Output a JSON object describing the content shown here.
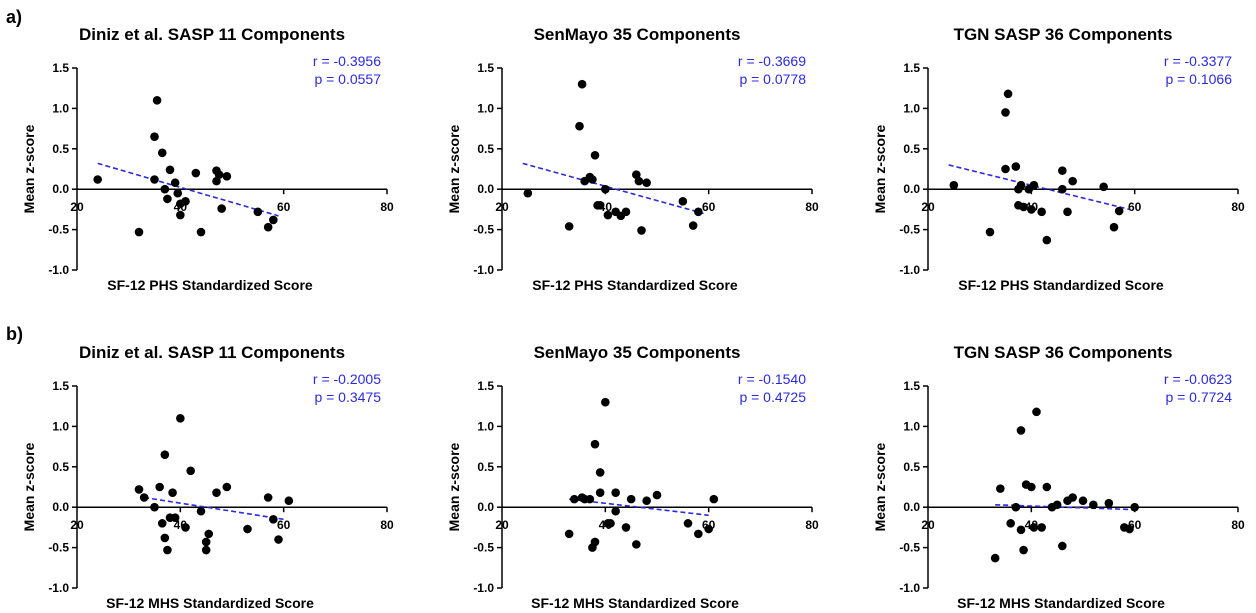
{
  "row_labels": [
    "a)",
    "b)"
  ],
  "colors": {
    "points": "#000000",
    "trend": "#2b2bdc",
    "stats": "#2b2bdc",
    "axes": "#000000"
  },
  "chart_data": [
    {
      "type": "scatter",
      "title": "Diniz et al. SASP 11 Components",
      "xlabel": "SF-12 PHS Standardized Score",
      "ylabel": "Mean z-score",
      "xlim": [
        20,
        80
      ],
      "ylim": [
        -1.0,
        1.5
      ],
      "xticks": [
        20,
        40,
        60,
        80
      ],
      "yticks": [
        -1.0,
        -0.5,
        0.0,
        0.5,
        1.0,
        1.5
      ],
      "xticklabels": [
        "20",
        "40",
        "60",
        "80"
      ],
      "yticklabels": [
        "-1.0",
        "-0.5",
        "0.0",
        "0.5",
        "1.0",
        "1.5"
      ],
      "r": "r = -0.3956",
      "p": "p = 0.0557",
      "trend": {
        "x": [
          24,
          59
        ],
        "y": [
          0.32,
          -0.33
        ]
      },
      "points": [
        [
          24,
          0.12
        ],
        [
          32,
          -0.53
        ],
        [
          35,
          0.65
        ],
        [
          35,
          0.12
        ],
        [
          35.5,
          1.1
        ],
        [
          36.5,
          0.45
        ],
        [
          37,
          0.0
        ],
        [
          37.5,
          -0.12
        ],
        [
          38,
          0.24
        ],
        [
          39,
          0.08
        ],
        [
          39.5,
          -0.05
        ],
        [
          40,
          -0.18
        ],
        [
          40,
          -0.32
        ],
        [
          41,
          -0.15
        ],
        [
          43,
          0.2
        ],
        [
          44,
          -0.53
        ],
        [
          47,
          0.23
        ],
        [
          47,
          0.1
        ],
        [
          47.5,
          0.18
        ],
        [
          48,
          -0.24
        ],
        [
          49,
          0.16
        ],
        [
          55,
          -0.28
        ],
        [
          57,
          -0.47
        ],
        [
          58,
          -0.38
        ]
      ]
    },
    {
      "type": "scatter",
      "title": "SenMayo 35 Components",
      "xlabel": "SF-12 PHS Standardized Score",
      "ylabel": "Mean z-score",
      "xlim": [
        20,
        80
      ],
      "ylim": [
        -1.0,
        1.5
      ],
      "xticks": [
        20,
        40,
        60,
        80
      ],
      "yticks": [
        -1.0,
        -0.5,
        0.0,
        0.5,
        1.0,
        1.5
      ],
      "xticklabels": [
        "20",
        "40",
        "60",
        "80"
      ],
      "yticklabels": [
        "-1.0",
        "-0.5",
        "0.0",
        "0.5",
        "1.0",
        "1.5"
      ],
      "r": "r = -0.3669",
      "p": "p = 0.0778",
      "trend": {
        "x": [
          24,
          59
        ],
        "y": [
          0.32,
          -0.3
        ]
      },
      "points": [
        [
          25,
          -0.05
        ],
        [
          33,
          -0.46
        ],
        [
          35,
          0.78
        ],
        [
          35.5,
          1.3
        ],
        [
          36,
          0.1
        ],
        [
          37,
          0.15
        ],
        [
          37.5,
          0.12
        ],
        [
          38,
          0.42
        ],
        [
          38.5,
          -0.2
        ],
        [
          39,
          -0.2
        ],
        [
          40,
          0.0
        ],
        [
          40.5,
          -0.32
        ],
        [
          42,
          -0.28
        ],
        [
          43,
          -0.33
        ],
        [
          44,
          -0.28
        ],
        [
          46,
          0.18
        ],
        [
          46.5,
          0.1
        ],
        [
          47,
          -0.51
        ],
        [
          48,
          0.08
        ],
        [
          55,
          -0.15
        ],
        [
          57,
          -0.45
        ],
        [
          58,
          -0.28
        ]
      ]
    },
    {
      "type": "scatter",
      "title": "TGN SASP 36 Components",
      "xlabel": "SF-12 PHS Standardized Score",
      "ylabel": "Mean z-score",
      "xlim": [
        20,
        80
      ],
      "ylim": [
        -1.0,
        1.5
      ],
      "xticks": [
        20,
        40,
        60,
        80
      ],
      "yticks": [
        -1.0,
        -0.5,
        0.0,
        0.5,
        1.0,
        1.5
      ],
      "xticklabels": [
        "20",
        "40",
        "60",
        "80"
      ],
      "yticklabels": [
        "-1.0",
        "-0.5",
        "0.0",
        "0.5",
        "1.0",
        "1.5"
      ],
      "r": "r = -0.3377",
      "p": "p = 0.1066",
      "trend": {
        "x": [
          24,
          59
        ],
        "y": [
          0.3,
          -0.25
        ]
      },
      "points": [
        [
          25,
          0.05
        ],
        [
          32,
          -0.53
        ],
        [
          35,
          0.95
        ],
        [
          35.5,
          1.18
        ],
        [
          35,
          0.25
        ],
        [
          37,
          0.28
        ],
        [
          37.5,
          0.0
        ],
        [
          38,
          0.05
        ],
        [
          37.5,
          -0.2
        ],
        [
          38.5,
          -0.22
        ],
        [
          39.5,
          0.0
        ],
        [
          40,
          -0.25
        ],
        [
          40.5,
          0.05
        ],
        [
          42,
          -0.28
        ],
        [
          43,
          -0.63
        ],
        [
          46,
          0.23
        ],
        [
          46,
          0.0
        ],
        [
          47,
          -0.28
        ],
        [
          48,
          0.1
        ],
        [
          54,
          0.03
        ],
        [
          56,
          -0.47
        ],
        [
          57,
          -0.27
        ]
      ]
    },
    {
      "type": "scatter",
      "title": "Diniz et al. SASP 11 Components",
      "xlabel": "SF-12 MHS Standardized Score",
      "ylabel": "Mean z-score",
      "xlim": [
        20,
        80
      ],
      "ylim": [
        -1.0,
        1.5
      ],
      "xticks": [
        20,
        40,
        60,
        80
      ],
      "yticks": [
        -1.0,
        -0.5,
        0.0,
        0.5,
        1.0,
        1.5
      ],
      "xticklabels": [
        "20",
        "40",
        "60",
        "80"
      ],
      "yticklabels": [
        "-1.0",
        "-0.5",
        "0.0",
        "0.5",
        "1.0",
        "1.5"
      ],
      "r": "r = -0.2005",
      "p": "p = 0.3475",
      "trend": {
        "x": [
          33,
          60
        ],
        "y": [
          0.12,
          -0.15
        ]
      },
      "points": [
        [
          32,
          0.22
        ],
        [
          33,
          0.12
        ],
        [
          35,
          0.0
        ],
        [
          36,
          0.25
        ],
        [
          36.5,
          -0.2
        ],
        [
          37,
          -0.38
        ],
        [
          37,
          0.65
        ],
        [
          37.5,
          -0.53
        ],
        [
          38,
          -0.13
        ],
        [
          38.5,
          0.18
        ],
        [
          39,
          -0.13
        ],
        [
          40,
          1.1
        ],
        [
          41,
          -0.25
        ],
        [
          42,
          0.45
        ],
        [
          44,
          -0.05
        ],
        [
          45,
          -0.43
        ],
        [
          45.5,
          -0.33
        ],
        [
          45,
          -0.53
        ],
        [
          47,
          0.18
        ],
        [
          49,
          0.25
        ],
        [
          53,
          -0.27
        ],
        [
          57,
          0.12
        ],
        [
          58,
          -0.15
        ],
        [
          59,
          -0.4
        ],
        [
          61,
          0.08
        ]
      ]
    },
    {
      "type": "scatter",
      "title": "SenMayo 35 Components",
      "xlabel": "SF-12 MHS Standardized Score",
      "ylabel": "Mean z-score",
      "xlim": [
        20,
        80
      ],
      "ylim": [
        -1.0,
        1.5
      ],
      "xticks": [
        20,
        40,
        60,
        80
      ],
      "yticks": [
        -1.0,
        -0.5,
        0.0,
        0.5,
        1.0,
        1.5
      ],
      "xticklabels": [
        "20",
        "40",
        "60",
        "80"
      ],
      "yticklabels": [
        "-1.0",
        "-0.5",
        "0.0",
        "0.5",
        "1.0",
        "1.5"
      ],
      "r": "r = -0.1540",
      "p": "p = 0.4725",
      "trend": {
        "x": [
          33,
          60
        ],
        "y": [
          0.1,
          -0.1
        ]
      },
      "points": [
        [
          33,
          -0.33
        ],
        [
          34,
          0.1
        ],
        [
          35.5,
          0.12
        ],
        [
          36,
          0.1
        ],
        [
          37,
          0.1
        ],
        [
          37.5,
          -0.5
        ],
        [
          38,
          -0.43
        ],
        [
          38,
          0.78
        ],
        [
          39,
          0.43
        ],
        [
          39,
          0.18
        ],
        [
          40,
          1.3
        ],
        [
          40.5,
          -0.2
        ],
        [
          41,
          -0.2
        ],
        [
          42,
          -0.05
        ],
        [
          42,
          0.18
        ],
        [
          44,
          -0.25
        ],
        [
          45,
          0.1
        ],
        [
          46,
          -0.46
        ],
        [
          48,
          0.08
        ],
        [
          50,
          0.15
        ],
        [
          56,
          -0.2
        ],
        [
          58,
          -0.33
        ],
        [
          60,
          -0.27
        ],
        [
          61,
          0.1
        ]
      ]
    },
    {
      "type": "scatter",
      "title": "TGN SASP 36 Components",
      "xlabel": "SF-12 MHS Standardized Score",
      "ylabel": "Mean z-score",
      "xlim": [
        20,
        80
      ],
      "ylim": [
        -1.0,
        1.5
      ],
      "xticks": [
        20,
        40,
        60,
        80
      ],
      "yticks": [
        -1.0,
        -0.5,
        0.0,
        0.5,
        1.0,
        1.5
      ],
      "xticklabels": [
        "20",
        "40",
        "60",
        "80"
      ],
      "yticklabels": [
        "-1.0",
        "-0.5",
        "0.0",
        "0.5",
        "1.0",
        "1.5"
      ],
      "r": "r = -0.0623",
      "p": "p = 0.7724",
      "trend": {
        "x": [
          33,
          60
        ],
        "y": [
          0.03,
          -0.03
        ]
      },
      "points": [
        [
          33,
          -0.63
        ],
        [
          34,
          0.23
        ],
        [
          36,
          -0.2
        ],
        [
          37,
          0.0
        ],
        [
          38,
          -0.28
        ],
        [
          38,
          0.95
        ],
        [
          38.5,
          -0.53
        ],
        [
          39,
          0.28
        ],
        [
          40,
          0.25
        ],
        [
          40.5,
          -0.25
        ],
        [
          41,
          1.18
        ],
        [
          42,
          -0.25
        ],
        [
          43,
          0.25
        ],
        [
          44,
          0.0
        ],
        [
          45,
          0.03
        ],
        [
          46,
          -0.48
        ],
        [
          47,
          0.08
        ],
        [
          48,
          0.12
        ],
        [
          50,
          0.08
        ],
        [
          52,
          0.03
        ],
        [
          55,
          0.05
        ],
        [
          58,
          -0.25
        ],
        [
          59,
          -0.27
        ],
        [
          60,
          0.0
        ]
      ]
    }
  ]
}
